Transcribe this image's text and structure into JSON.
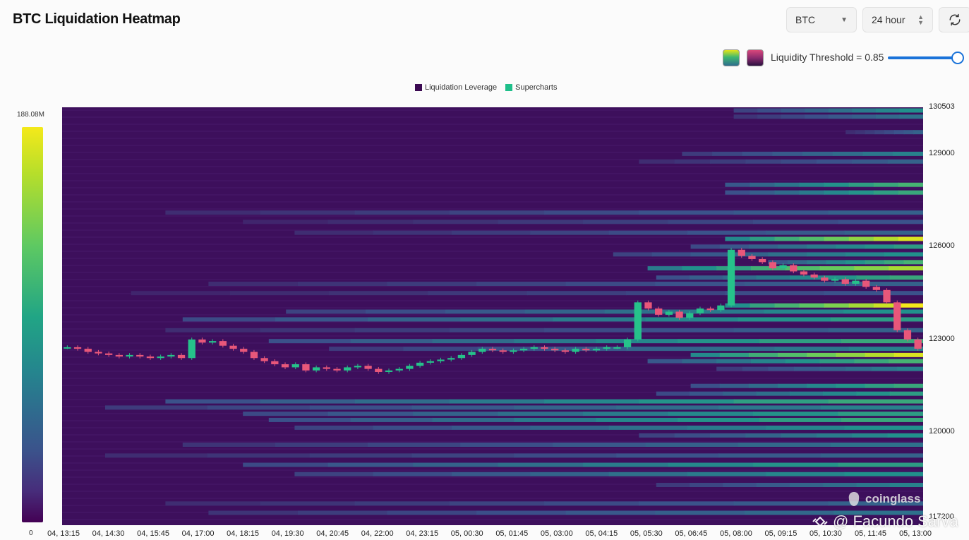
{
  "header": {
    "title": "BTC Liquidation Heatmap",
    "coin_select": "BTC",
    "range_select": "24 hour",
    "refresh_icon": "refresh-icon"
  },
  "threshold": {
    "label": "Liquidity Threshold = 0.85",
    "value": 0.85,
    "swatch_1_icon": "green-gradient-swatch-icon",
    "swatch_2_icon": "magenta-gradient-swatch-icon"
  },
  "legend": {
    "items": [
      {
        "label": "Liquidation Leverage",
        "color": "#3b0a52"
      },
      {
        "label": "Supercharts",
        "color": "#1fbf8a"
      }
    ]
  },
  "colorbar": {
    "max_label": "188.08M",
    "min_label": "0"
  },
  "watermarks": {
    "brand": "coinglass",
    "credit": "@ Facundo Sarva"
  },
  "chart_data": {
    "type": "heatmap",
    "title": "BTC Liquidation Heatmap",
    "x_ticks": [
      "04, 13:15",
      "04, 14:30",
      "04, 15:45",
      "04, 17:00",
      "04, 18:15",
      "04, 19:30",
      "04, 20:45",
      "04, 22:00",
      "04, 23:15",
      "05, 00:30",
      "05, 01:45",
      "05, 03:00",
      "05, 04:15",
      "05, 05:30",
      "05, 06:45",
      "05, 08:00",
      "05, 09:15",
      "05, 10:30",
      "05, 11:45",
      "05, 13:00"
    ],
    "y_ticks": [
      130503,
      129000,
      126000,
      123000,
      120000,
      117200
    ],
    "ylim": [
      117000,
      130503
    ],
    "colorscale": {
      "min": 0,
      "max": "188.08M"
    },
    "bands": [
      {
        "price": 130400,
        "start": 0.78,
        "level": 0.45
      },
      {
        "price": 130200,
        "start": 0.78,
        "level": 0.35
      },
      {
        "price": 129700,
        "start": 0.91,
        "level": 0.3
      },
      {
        "price": 129000,
        "start": 0.72,
        "level": 0.4
      },
      {
        "price": 128750,
        "start": 0.67,
        "level": 0.3
      },
      {
        "price": 128000,
        "start": 0.77,
        "level": 0.6
      },
      {
        "price": 127750,
        "start": 0.77,
        "level": 0.55
      },
      {
        "price": 127100,
        "start": 0.12,
        "level": 0.3
      },
      {
        "price": 126800,
        "start": 0.21,
        "level": 0.25
      },
      {
        "price": 126450,
        "start": 0.27,
        "level": 0.3
      },
      {
        "price": 126250,
        "start": 0.77,
        "level": 0.95
      },
      {
        "price": 126000,
        "start": 0.73,
        "level": 0.5
      },
      {
        "price": 125750,
        "start": 0.64,
        "level": 0.45
      },
      {
        "price": 125500,
        "start": 0.82,
        "level": 0.6
      },
      {
        "price": 125300,
        "start": 0.68,
        "level": 0.85
      },
      {
        "price": 125000,
        "start": 0.69,
        "level": 0.55
      },
      {
        "price": 124800,
        "start": 0.17,
        "level": 0.3
      },
      {
        "price": 124500,
        "start": 0.08,
        "level": 0.25
      },
      {
        "price": 124100,
        "start": 0.77,
        "level": 1.0
      },
      {
        "price": 123900,
        "start": 0.26,
        "level": 0.45
      },
      {
        "price": 123650,
        "start": 0.14,
        "level": 0.5
      },
      {
        "price": 123300,
        "start": 0.12,
        "level": 0.3
      },
      {
        "price": 122950,
        "start": 0.24,
        "level": 0.55
      },
      {
        "price": 122700,
        "start": 0.31,
        "level": 0.4
      },
      {
        "price": 122500,
        "start": 0.73,
        "level": 0.95
      },
      {
        "price": 122300,
        "start": 0.68,
        "level": 0.6
      },
      {
        "price": 122050,
        "start": 0.76,
        "level": 0.4
      },
      {
        "price": 121500,
        "start": 0.73,
        "level": 0.55
      },
      {
        "price": 121250,
        "start": 0.69,
        "level": 0.5
      },
      {
        "price": 121000,
        "start": 0.12,
        "level": 0.55
      },
      {
        "price": 120800,
        "start": 0.05,
        "level": 0.4
      },
      {
        "price": 120600,
        "start": 0.21,
        "level": 0.5
      },
      {
        "price": 120400,
        "start": 0.24,
        "level": 0.55
      },
      {
        "price": 120150,
        "start": 0.27,
        "level": 0.45
      },
      {
        "price": 119900,
        "start": 0.67,
        "level": 0.45
      },
      {
        "price": 119600,
        "start": 0.14,
        "level": 0.35
      },
      {
        "price": 119250,
        "start": 0.05,
        "level": 0.3
      },
      {
        "price": 118950,
        "start": 0.21,
        "level": 0.5
      },
      {
        "price": 118650,
        "start": 0.27,
        "level": 0.45
      },
      {
        "price": 118300,
        "start": 0.69,
        "level": 0.4
      },
      {
        "price": 117700,
        "start": 0.12,
        "level": 0.3
      },
      {
        "price": 117400,
        "start": 0.17,
        "level": 0.35
      }
    ],
    "price_series": [
      122750,
      122700,
      122600,
      122550,
      122500,
      122450,
      122500,
      122450,
      122400,
      122450,
      122500,
      122400,
      123000,
      122900,
      122950,
      122800,
      122700,
      122600,
      122400,
      122300,
      122200,
      122100,
      122200,
      122000,
      122100,
      122050,
      122000,
      122100,
      122150,
      122050,
      121950,
      122000,
      122050,
      122150,
      122250,
      122300,
      122350,
      122400,
      122500,
      122600,
      122700,
      122650,
      122600,
      122650,
      122700,
      122750,
      122700,
      122650,
      122600,
      122700,
      122650,
      122700,
      122750,
      122750,
      123000,
      124200,
      124000,
      123800,
      123900,
      123700,
      123850,
      124000,
      123950,
      124100,
      125900,
      125700,
      125600,
      125500,
      125300,
      125400,
      125200,
      125100,
      125000,
      124900,
      124950,
      124800,
      124900,
      124700,
      124600,
      124200,
      123300,
      123000,
      122700
    ]
  }
}
